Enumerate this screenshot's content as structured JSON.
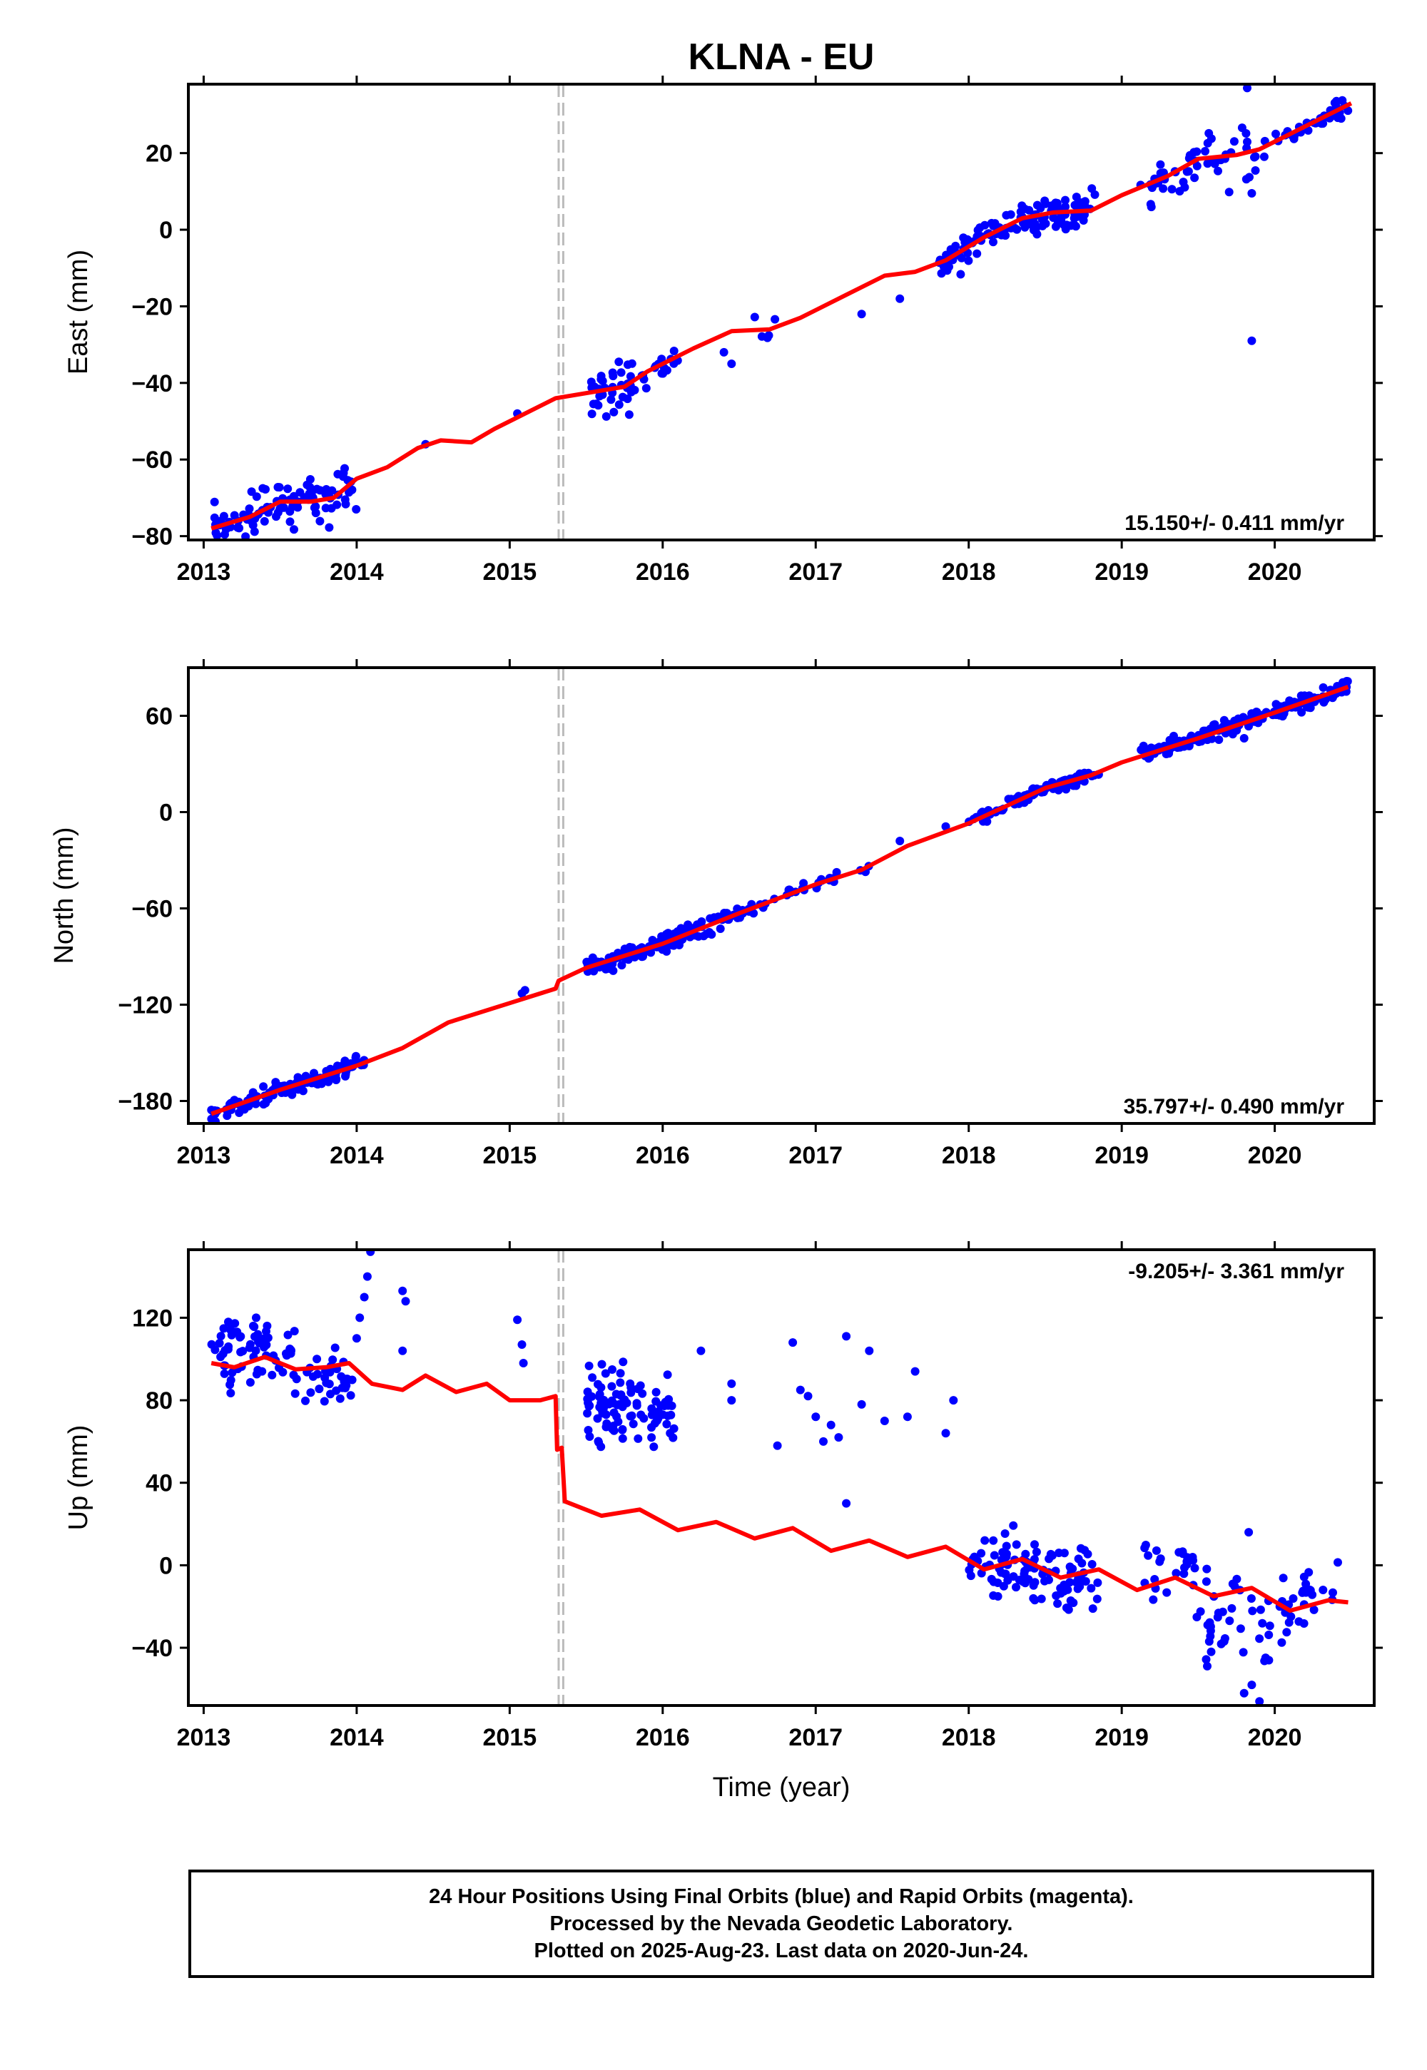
{
  "title": "KLNA - EU",
  "colors": {
    "data": "#0000ff",
    "model": "#ff0000",
    "steps": "#bbbbbb",
    "frame": "#000000"
  },
  "x_ticks": [
    "2013",
    "2014",
    "2015",
    "2016",
    "2017",
    "2018",
    "2019",
    "2020"
  ],
  "x_label": "Time (year)",
  "chart_data": [
    {
      "type": "scatter",
      "name": "east",
      "ylabel": "East (mm)",
      "xlim": [
        2012.9,
        2020.65
      ],
      "ylim": [
        -81,
        38
      ],
      "yticks": [
        -80,
        -60,
        -40,
        -20,
        0,
        20
      ],
      "ytick_labels": [
        "−80",
        "−60",
        "−40",
        "−20",
        "0",
        "20"
      ],
      "rate_label": "15.150+/- 0.411 mm/yr",
      "rate_pos": "bottom-right",
      "step_epochs": [
        2015.32,
        2015.35
      ],
      "model_line": [
        [
          2013.05,
          -78
        ],
        [
          2013.3,
          -75
        ],
        [
          2013.5,
          -71
        ],
        [
          2013.7,
          -71
        ],
        [
          2013.85,
          -70
        ],
        [
          2014.0,
          -65
        ],
        [
          2014.2,
          -62
        ],
        [
          2014.4,
          -57
        ],
        [
          2014.55,
          -55
        ],
        [
          2014.75,
          -55.5
        ],
        [
          2014.9,
          -52
        ],
        [
          2015.1,
          -48
        ],
        [
          2015.3,
          -44
        ],
        [
          2015.6,
          -42
        ],
        [
          2015.75,
          -41
        ],
        [
          2015.9,
          -37
        ],
        [
          2016.2,
          -31
        ],
        [
          2016.45,
          -26.5
        ],
        [
          2016.7,
          -26
        ],
        [
          2016.9,
          -23
        ],
        [
          2017.2,
          -17
        ],
        [
          2017.45,
          -12
        ],
        [
          2017.65,
          -11
        ],
        [
          2017.85,
          -8
        ],
        [
          2018.1,
          -2
        ],
        [
          2018.35,
          3
        ],
        [
          2018.55,
          4.5
        ],
        [
          2018.8,
          5
        ],
        [
          2019.0,
          9
        ],
        [
          2019.3,
          14
        ],
        [
          2019.5,
          18.5
        ],
        [
          2019.75,
          19.5
        ],
        [
          2019.9,
          21
        ],
        [
          2020.1,
          25
        ],
        [
          2020.3,
          29
        ],
        [
          2020.5,
          33
        ]
      ],
      "obs_segments": [
        {
          "from": 2013.05,
          "to": 2013.98,
          "density": 100,
          "jitter": 3,
          "seed": 11
        },
        {
          "from": 2013.98,
          "to": 2014.05,
          "density": 8,
          "jitter": 4,
          "seed": 12
        },
        {
          "from": 2015.52,
          "to": 2015.8,
          "density": 130,
          "jitter": 4,
          "seed": 13
        },
        {
          "from": 2015.8,
          "to": 2016.12,
          "density": 55,
          "jitter": 2,
          "seed": 14
        },
        {
          "from": 2016.6,
          "to": 2016.95,
          "density": 14,
          "jitter": 2,
          "seed": 15
        },
        {
          "from": 2017.8,
          "to": 2018.85,
          "density": 120,
          "jitter": 2.5,
          "seed": 16
        },
        {
          "from": 2019.12,
          "to": 2019.55,
          "density": 70,
          "jitter": 3,
          "seed": 17
        },
        {
          "from": 2019.55,
          "to": 2019.95,
          "density": 60,
          "jitter": 4,
          "seed": 18
        },
        {
          "from": 2020.0,
          "to": 2020.48,
          "density": 70,
          "jitter": 1.5,
          "seed": 19
        }
      ],
      "obs_extra": [
        [
          2014.45,
          -56
        ],
        [
          2015.05,
          -48
        ],
        [
          2016.4,
          -32
        ],
        [
          2016.45,
          -35
        ],
        [
          2017.3,
          -22
        ],
        [
          2017.55,
          -18
        ],
        [
          2017.9,
          -7
        ],
        [
          2019.85,
          -29
        ],
        [
          2019.82,
          37
        ],
        [
          2019.85,
          9.5
        ]
      ]
    },
    {
      "type": "scatter",
      "name": "north",
      "ylabel": "North (mm)",
      "xlim": [
        2012.9,
        2020.65
      ],
      "ylim": [
        -194,
        90
      ],
      "yticks": [
        -180,
        -120,
        -60,
        0,
        60
      ],
      "ytick_labels": [
        "−180",
        "−120",
        "−60",
        "0",
        "60"
      ],
      "rate_label": "35.797+/- 0.490 mm/yr",
      "rate_pos": "bottom-right",
      "step_epochs": [
        2015.32,
        2015.35
      ],
      "model_line": [
        [
          2013.05,
          -188
        ],
        [
          2013.5,
          -173
        ],
        [
          2014.0,
          -158
        ],
        [
          2014.3,
          -147
        ],
        [
          2014.6,
          -131
        ],
        [
          2015.0,
          -119
        ],
        [
          2015.3,
          -110
        ],
        [
          2015.32,
          -105
        ],
        [
          2015.5,
          -97
        ],
        [
          2016.0,
          -82
        ],
        [
          2016.5,
          -63
        ],
        [
          2017.0,
          -45
        ],
        [
          2017.3,
          -36
        ],
        [
          2017.6,
          -21
        ],
        [
          2018.0,
          -7
        ],
        [
          2018.5,
          15
        ],
        [
          2018.8,
          23
        ],
        [
          2019.0,
          31
        ],
        [
          2019.5,
          46
        ],
        [
          2020.0,
          62
        ],
        [
          2020.48,
          78
        ]
      ],
      "obs_segments": [
        {
          "from": 2013.05,
          "to": 2014.05,
          "density": 120,
          "jitter": 2.5,
          "seed": 21
        },
        {
          "from": 2015.5,
          "to": 2016.45,
          "density": 130,
          "jitter": 3,
          "seed": 22
        },
        {
          "from": 2016.45,
          "to": 2017.35,
          "density": 40,
          "jitter": 2,
          "seed": 23
        },
        {
          "from": 2018.0,
          "to": 2018.85,
          "density": 110,
          "jitter": 2,
          "seed": 24
        },
        {
          "from": 2019.12,
          "to": 2020.48,
          "density": 130,
          "jitter": 2.5,
          "seed": 25
        }
      ],
      "obs_extra": [
        [
          2015.08,
          -113
        ],
        [
          2015.1,
          -111
        ],
        [
          2017.55,
          -18
        ],
        [
          2017.85,
          -9
        ],
        [
          2019.8,
          46
        ]
      ]
    },
    {
      "type": "scatter",
      "name": "up",
      "ylabel": "Up (mm)",
      "xlim": [
        2012.9,
        2020.65
      ],
      "ylim": [
        -68,
        153
      ],
      "yticks": [
        -40,
        0,
        40,
        80,
        120
      ],
      "ytick_labels": [
        "−40",
        "0",
        "40",
        "80",
        "120"
      ],
      "rate_label": "-9.205+/- 3.361 mm/yr",
      "rate_pos": "top-right",
      "step_epochs": [
        2015.32,
        2015.35
      ],
      "model_line": [
        [
          2013.05,
          98
        ],
        [
          2013.2,
          96
        ],
        [
          2013.4,
          101
        ],
        [
          2013.6,
          95
        ],
        [
          2013.8,
          96
        ],
        [
          2013.95,
          98
        ],
        [
          2014.1,
          88
        ],
        [
          2014.3,
          85
        ],
        [
          2014.45,
          92
        ],
        [
          2014.65,
          84
        ],
        [
          2014.85,
          88
        ],
        [
          2015.0,
          80
        ],
        [
          2015.2,
          80
        ],
        [
          2015.3,
          82
        ],
        [
          2015.31,
          56
        ],
        [
          2015.34,
          57
        ],
        [
          2015.36,
          31
        ],
        [
          2015.6,
          24
        ],
        [
          2015.85,
          27
        ],
        [
          2016.1,
          17
        ],
        [
          2016.35,
          21
        ],
        [
          2016.6,
          13
        ],
        [
          2016.85,
          18
        ],
        [
          2017.1,
          7
        ],
        [
          2017.35,
          12
        ],
        [
          2017.6,
          4
        ],
        [
          2017.85,
          9
        ],
        [
          2018.1,
          -2
        ],
        [
          2018.35,
          3
        ],
        [
          2018.6,
          -6
        ],
        [
          2018.85,
          -2
        ],
        [
          2019.1,
          -12
        ],
        [
          2019.35,
          -6
        ],
        [
          2019.6,
          -15
        ],
        [
          2019.85,
          -11
        ],
        [
          2020.1,
          -22
        ],
        [
          2020.35,
          -17
        ],
        [
          2020.48,
          -18
        ]
      ],
      "obs_segments": [
        {
          "from": 2013.05,
          "to": 2013.6,
          "density": 120,
          "jitter": 8,
          "offset": 6,
          "seed": 31
        },
        {
          "from": 2013.6,
          "to": 2013.98,
          "density": 90,
          "jitter": 8,
          "offset": -4,
          "seed": 32
        },
        {
          "from": 2015.5,
          "to": 2016.1,
          "density": 170,
          "jitter": 10,
          "offset": 52,
          "seed": 33
        },
        {
          "from": 2018.0,
          "to": 2018.85,
          "density": 130,
          "jitter": 8,
          "offset": -2,
          "seed": 34
        },
        {
          "from": 2019.12,
          "to": 2019.55,
          "density": 60,
          "jitter": 10,
          "offset": 2,
          "seed": 35
        },
        {
          "from": 2019.55,
          "to": 2020.05,
          "density": 80,
          "jitter": 12,
          "offset": -10,
          "seed": 36
        },
        {
          "from": 2020.05,
          "to": 2020.48,
          "density": 60,
          "jitter": 7,
          "offset": 3,
          "seed": 37
        }
      ],
      "obs_extra": [
        [
          2014.0,
          110
        ],
        [
          2014.02,
          120
        ],
        [
          2014.05,
          130
        ],
        [
          2014.07,
          140
        ],
        [
          2014.09,
          152
        ],
        [
          2014.3,
          133
        ],
        [
          2014.32,
          128
        ],
        [
          2014.3,
          104
        ],
        [
          2015.05,
          119
        ],
        [
          2015.08,
          107
        ],
        [
          2015.09,
          98
        ],
        [
          2016.25,
          104
        ],
        [
          2016.45,
          88
        ],
        [
          2016.45,
          80
        ],
        [
          2016.75,
          58
        ],
        [
          2016.85,
          108
        ],
        [
          2016.9,
          85
        ],
        [
          2016.95,
          82
        ],
        [
          2017.0,
          72
        ],
        [
          2017.05,
          60
        ],
        [
          2017.1,
          68
        ],
        [
          2017.15,
          62
        ],
        [
          2017.2,
          111
        ],
        [
          2017.2,
          30
        ],
        [
          2017.3,
          78
        ],
        [
          2017.35,
          104
        ],
        [
          2017.45,
          70
        ],
        [
          2017.65,
          94
        ],
        [
          2017.85,
          64
        ],
        [
          2017.9,
          80
        ],
        [
          2017.6,
          72
        ],
        [
          2019.8,
          -62
        ],
        [
          2019.85,
          -58
        ],
        [
          2019.9,
          -66
        ],
        [
          2019.83,
          16
        ]
      ]
    }
  ],
  "footer": {
    "line1": "24 Hour Positions Using Final Orbits (blue) and Rapid Orbits (magenta).",
    "line2": "Processed by the Nevada Geodetic Laboratory.",
    "line3": "Plotted on 2025-Aug-23. Last data on 2020-Jun-24."
  }
}
